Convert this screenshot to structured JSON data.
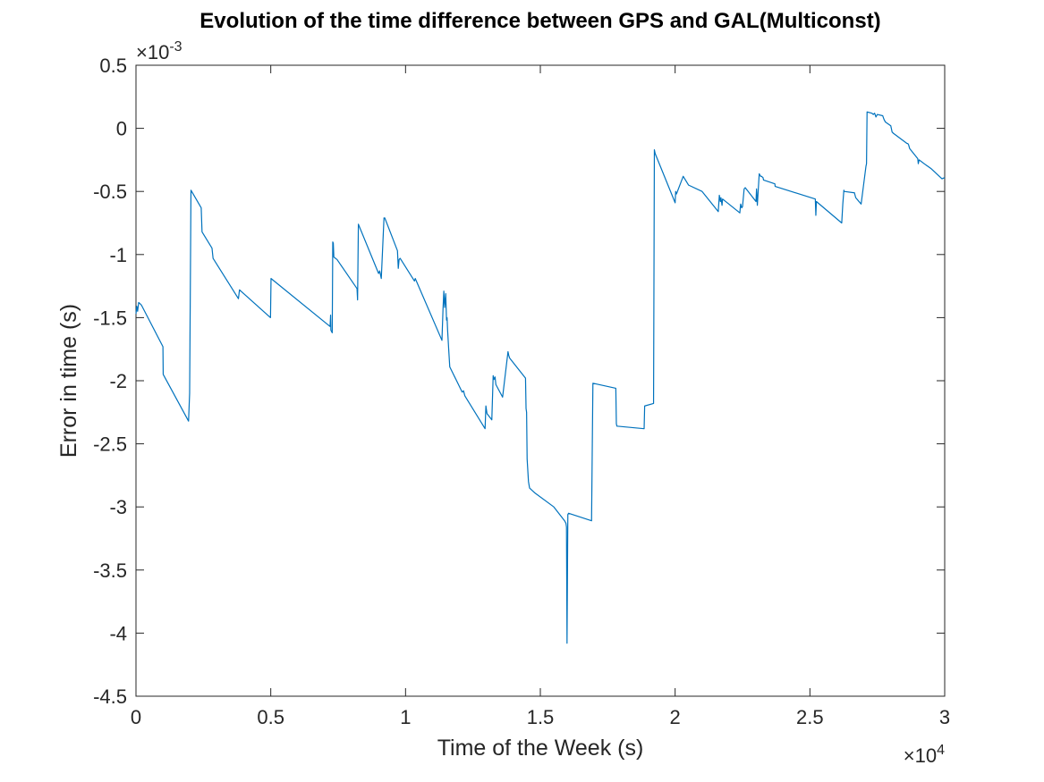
{
  "chart_data": {
    "type": "line",
    "title": "Evolution of the time difference between GPS and GAL(Multiconst)",
    "xlabel": "Time of the Week (s)",
    "ylabel": "Error in time (s)",
    "xlim": [
      0,
      30000
    ],
    "ylim": [
      -0.0045,
      0.0005
    ],
    "x_multiplier": {
      "base": "×10",
      "exponent": "4"
    },
    "y_multiplier": {
      "base": "×10",
      "exponent": "-3"
    },
    "xticks": [
      0,
      5000,
      10000,
      15000,
      20000,
      25000,
      30000
    ],
    "xtick_labels": [
      "0",
      "0.5",
      "1",
      "1.5",
      "2",
      "2.5",
      "3"
    ],
    "yticks": [
      0.0005,
      0,
      -0.0005,
      -0.001,
      -0.0015,
      -0.002,
      -0.0025,
      -0.003,
      -0.0035,
      -0.004,
      -0.0045
    ],
    "ytick_labels": [
      "0.5",
      "0",
      "-0.5",
      "-1",
      "-1.5",
      "-2",
      "-2.5",
      "-3",
      "-3.5",
      "-4",
      "-4.5"
    ],
    "grid": false,
    "series": [
      {
        "color": "#0072BD",
        "x": [
          0,
          30,
          60,
          100,
          150,
          200,
          1000,
          1010,
          1950,
          1990,
          2040,
          2420,
          2450,
          2820,
          2860,
          3800,
          3840,
          4990,
          5010,
          7200,
          7220,
          7230,
          7280,
          7300,
          7320,
          7340,
          7460,
          8200,
          8220,
          8250,
          8270,
          9000,
          9040,
          9100,
          9200,
          9230,
          9700,
          9730,
          9760,
          9800,
          10330,
          10360,
          10380,
          11350,
          11390,
          11420,
          11450,
          11490,
          11520,
          11540,
          11560,
          11600,
          11640,
          12100,
          12150,
          12200,
          12950,
          12980,
          13020,
          13200,
          13250,
          13280,
          13320,
          13350,
          13600,
          13800,
          13830,
          13860,
          14450,
          14470,
          14490,
          14510,
          14560,
          14600,
          14800,
          15500,
          15900,
          15950,
          15970,
          15990,
          16020,
          16050,
          16900,
          16950,
          17800,
          17820,
          17840,
          18850,
          18870,
          19200,
          19230,
          19260,
          20000,
          20020,
          20050,
          20300,
          20500,
          21000,
          21600,
          21640,
          21680,
          21700,
          21740,
          21760,
          22400,
          22430,
          22470,
          22500,
          22560,
          22600,
          23000,
          23020,
          23050,
          23080,
          23120,
          23170,
          23200,
          23260,
          23280,
          23700,
          23710,
          25200,
          25220,
          25240,
          26180,
          26220,
          26260,
          26270,
          26620,
          26650,
          26700,
          26900,
          27080,
          27100,
          27120,
          27300,
          27350,
          27400,
          27450,
          27500,
          27700,
          27750,
          27800,
          28000,
          28050,
          28100,
          28600,
          28630,
          28660,
          28700,
          29000,
          29020,
          29050,
          29300,
          29500,
          29700,
          29900,
          30000
        ],
        "y": [
          -0.00147,
          -0.00141,
          -0.00145,
          -0.00138,
          -0.00139,
          -0.0014,
          -0.00173,
          -0.00195,
          -0.00232,
          -0.0021,
          -0.00049,
          -0.00063,
          -0.00082,
          -0.00095,
          -0.00103,
          -0.00135,
          -0.00128,
          -0.0015,
          -0.00119,
          -0.00157,
          -0.00148,
          -0.0016,
          -0.00162,
          -0.0009,
          -0.00091,
          -0.00102,
          -0.00104,
          -0.00127,
          -0.00136,
          -0.00076,
          -0.00077,
          -0.00115,
          -0.00113,
          -0.00119,
          -0.00071,
          -0.00071,
          -0.00097,
          -0.00111,
          -0.00104,
          -0.00103,
          -0.00121,
          -0.00119,
          -0.0012,
          -0.00168,
          -0.00143,
          -0.00129,
          -0.00142,
          -0.00131,
          -0.00152,
          -0.0015,
          -0.0016,
          -0.00175,
          -0.00189,
          -0.00209,
          -0.00208,
          -0.00212,
          -0.00238,
          -0.0022,
          -0.00226,
          -0.00231,
          -0.00196,
          -0.00199,
          -0.00197,
          -0.00203,
          -0.00213,
          -0.00177,
          -0.0018,
          -0.00182,
          -0.00198,
          -0.00222,
          -0.00225,
          -0.00262,
          -0.0028,
          -0.00285,
          -0.00289,
          -0.003,
          -0.00311,
          -0.00313,
          -0.00316,
          -0.00408,
          -0.00306,
          -0.00305,
          -0.00311,
          -0.00202,
          -0.00206,
          -0.00234,
          -0.00236,
          -0.00238,
          -0.0022,
          -0.00218,
          -0.00017,
          -0.0002,
          -0.00059,
          -0.0005,
          -0.00052,
          -0.00038,
          -0.00045,
          -0.0005,
          -0.00066,
          -0.00053,
          -0.00058,
          -0.00055,
          -0.00061,
          -0.00056,
          -0.00067,
          -0.0006,
          -0.00063,
          -0.00062,
          -0.00048,
          -0.00047,
          -0.00058,
          -0.00048,
          -0.00061,
          -0.0005,
          -0.00036,
          -0.00038,
          -0.00038,
          -0.00039,
          -0.00041,
          -0.00044,
          -0.00046,
          -0.00056,
          -0.00069,
          -0.00058,
          -0.00075,
          -0.0006,
          -0.00049,
          -0.0005,
          -0.00051,
          -0.00051,
          -0.00055,
          -0.0006,
          -0.0003,
          -0.00028,
          0.00013,
          0.00012,
          0.00011,
          0.00012,
          9e-05,
          0.00011,
          0.0001,
          7e-05,
          5e-05,
          2e-05,
          -3e-05,
          -4e-05,
          -0.00012,
          -0.00012,
          -0.00013,
          -0.00016,
          -0.00024,
          -0.00028,
          -0.00025,
          -0.00029,
          -0.00032,
          -0.00036,
          -0.0004,
          -0.00039
        ]
      }
    ]
  }
}
